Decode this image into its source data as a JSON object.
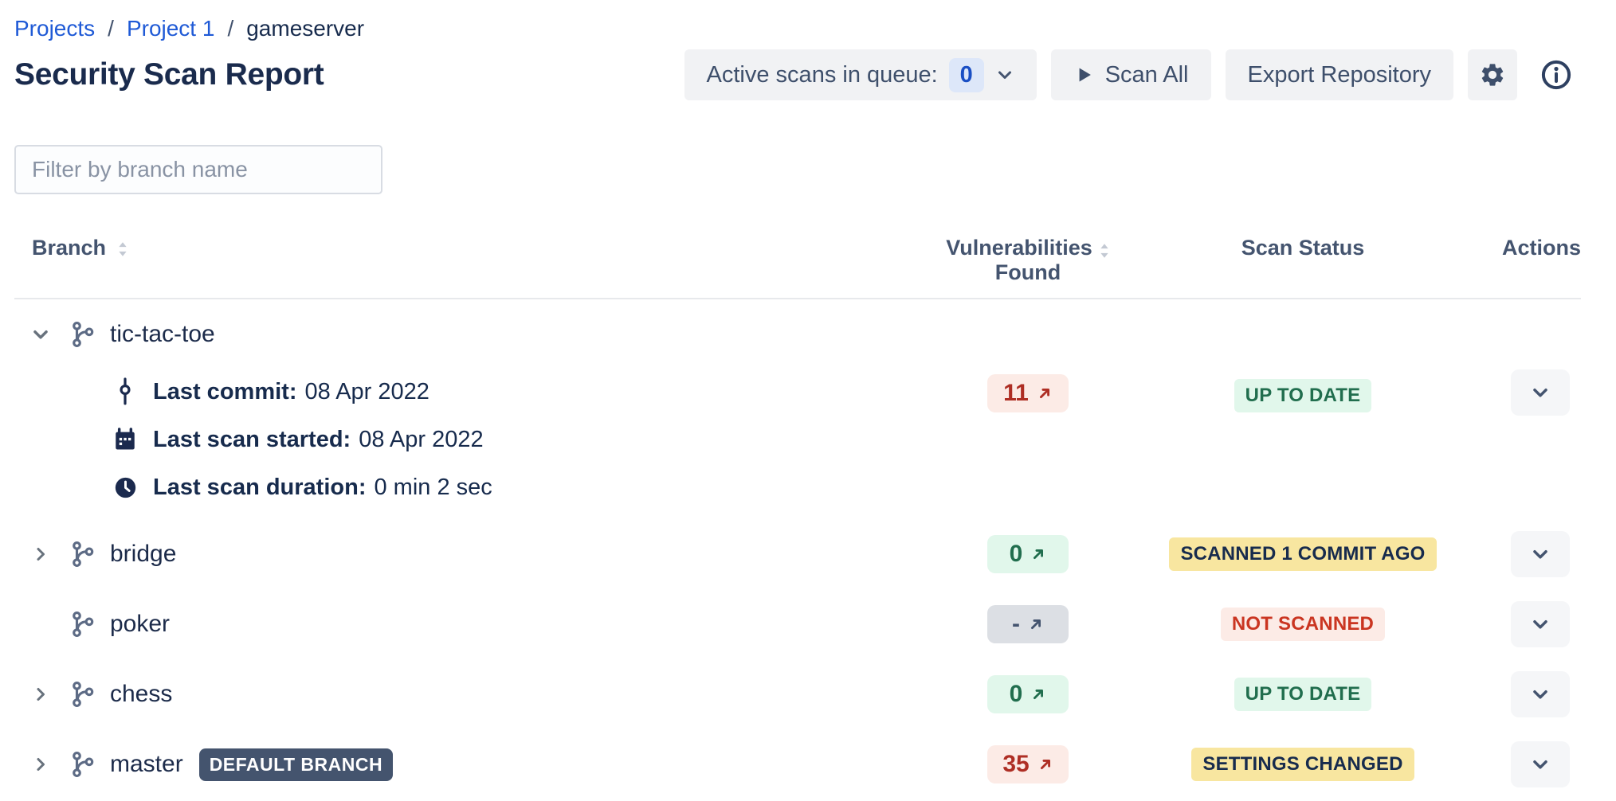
{
  "breadcrumb": {
    "separator": "/",
    "items": [
      {
        "label": "Projects"
      },
      {
        "label": "Project 1"
      },
      {
        "label": "gameserver"
      }
    ]
  },
  "header": {
    "title": "Security Scan Report",
    "queue_button": {
      "label": "Active scans in queue:",
      "count": "0",
      "icon": "chevron-down-icon"
    },
    "scan_all": {
      "label": "Scan All",
      "icon": "play-icon"
    },
    "export_label": "Export Repository",
    "settings_icon": "gear-icon",
    "info_icon": "info-icon"
  },
  "filter": {
    "placeholder": "Filter by branch name"
  },
  "table": {
    "columns": {
      "branch": "Branch",
      "vulnerabilities_line1": "Vulnerabilities",
      "vulnerabilities_line2": "Found",
      "scan_status": "Scan Status",
      "actions": "Actions"
    },
    "rows": [
      {
        "name": "tic-tac-toe",
        "expander": "down",
        "expanded": true,
        "details": [
          {
            "icon": "commit-icon",
            "label": "Last commit:",
            "value": "08 Apr 2022"
          },
          {
            "icon": "calendar-icon",
            "label": "Last scan started:",
            "value": "08 Apr 2022"
          },
          {
            "icon": "clock-icon",
            "label": "Last scan duration:",
            "value": "0 min 2 sec"
          }
        ],
        "vulnerabilities": {
          "value": "11",
          "tone": "red",
          "icon": "arrow-up-right-icon"
        },
        "status": {
          "label": "UP TO DATE",
          "tone": "green"
        }
      },
      {
        "name": "bridge",
        "expander": "right",
        "vulnerabilities": {
          "value": "0",
          "tone": "green",
          "icon": "arrow-up-right-icon"
        },
        "status": {
          "label": "SCANNED 1 COMMIT AGO",
          "tone": "yellow"
        }
      },
      {
        "name": "poker",
        "expander": "none",
        "vulnerabilities": {
          "value": "-",
          "tone": "gray",
          "icon": "arrow-up-right-icon"
        },
        "status": {
          "label": "NOT SCANNED",
          "tone": "red"
        }
      },
      {
        "name": "chess",
        "expander": "right",
        "vulnerabilities": {
          "value": "0",
          "tone": "green",
          "icon": "arrow-up-right-icon"
        },
        "status": {
          "label": "UP TO DATE",
          "tone": "green"
        }
      },
      {
        "name": "master",
        "expander": "right",
        "default_badge": "DEFAULT BRANCH",
        "vulnerabilities": {
          "value": "35",
          "tone": "red",
          "icon": "arrow-up-right-icon"
        },
        "status": {
          "label": "SETTINGS CHANGED",
          "tone": "yellow"
        }
      }
    ]
  },
  "colors": {
    "link_blue": "#1f5ad6",
    "title_navy": "#1a2b4d",
    "slate_text": "#44546f",
    "button_bg": "#f1f2f4",
    "queue_badge_bg": "#dde7f9",
    "queue_badge_text": "#1a4fc4",
    "red_text": "#ae2e24",
    "red_bg": "#fcebe6",
    "green_text": "#216e4e",
    "green_bg": "#e1f7eb",
    "yellow_bg": "#f8e6a0",
    "gray_badge_bg": "#dcdfe4",
    "default_branch_bg": "#44546e"
  }
}
